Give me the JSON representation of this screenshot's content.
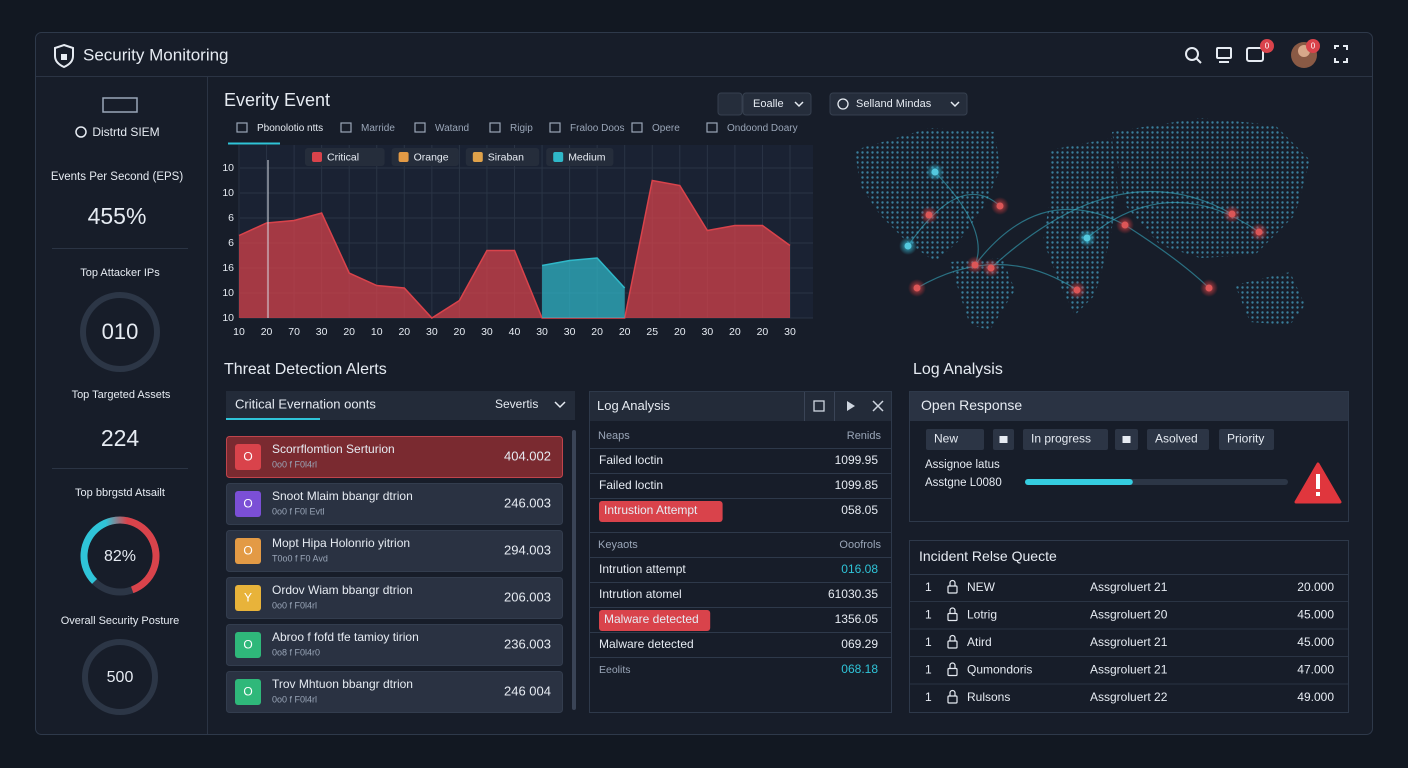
{
  "header": {
    "title": "Security Monitoring",
    "badges": [
      "0",
      "0"
    ]
  },
  "sidebar": {
    "brand": "Distrtd SIEM",
    "eps_label": "Events Per Second (EPS)",
    "eps_value": "455%",
    "attacker_label": "Top Attacker IPs",
    "attacker_value": "010",
    "assets_label": "Top Targeted Assets",
    "assets_value": "224",
    "gauge_label": "Top bbrgstd Atsailt",
    "gauge_text": "82%",
    "gauge_value": 82,
    "posture_label": "Overall Security Posture",
    "posture_value": "500"
  },
  "event_panel": {
    "dropdowns": [
      "Eoalle",
      "Selland Mindas"
    ],
    "tabs": [
      "Pbonolotio ntts",
      "Marride",
      "Watand",
      "Rigip",
      "Fraloo Doos",
      "Opere",
      "Ondoond Doary"
    ]
  },
  "chart_data": {
    "type": "area",
    "title": "Everity Event",
    "categories": [
      "10",
      "20",
      "70",
      "30",
      "20",
      "10",
      "20",
      "30",
      "20",
      "30",
      "40",
      "30",
      "30",
      "20",
      "20",
      "25",
      "20",
      "30",
      "20",
      "20",
      "30"
    ],
    "series": [
      {
        "name": "Critical",
        "color": "#d9434b",
        "values": [
          3.3,
          3.8,
          3.9,
          4.2,
          1.8,
          1.3,
          1.2,
          0,
          0.7,
          2.7,
          2.7,
          0,
          0,
          0,
          0,
          5.5,
          5.3,
          3.5,
          3.7,
          3.7,
          2.9
        ]
      },
      {
        "name": "Orange",
        "color": "#e39a45",
        "values": [
          null,
          null,
          null,
          null,
          null,
          null,
          null,
          null,
          null,
          null,
          null,
          null,
          null,
          null,
          null,
          null,
          null,
          null,
          null,
          null,
          null
        ]
      },
      {
        "name": "Siraban",
        "color": "#e0a24a",
        "values": [
          null,
          null,
          null,
          null,
          null,
          null,
          null,
          null,
          null,
          null,
          null,
          null,
          null,
          null,
          null,
          null,
          null,
          null,
          null,
          null,
          null
        ]
      },
      {
        "name": "Medium",
        "color": "#2fb8c9",
        "values": [
          null,
          null,
          null,
          null,
          null,
          null,
          null,
          null,
          null,
          null,
          null,
          2.1,
          2.3,
          2.4,
          1.2,
          null,
          null,
          null,
          null,
          null,
          null
        ]
      }
    ],
    "ylim": [
      0,
      7
    ],
    "yticks": [
      {
        "value": 0,
        "label": "10"
      },
      {
        "value": 1,
        "label": "10"
      },
      {
        "value": 2,
        "label": "16"
      },
      {
        "value": 3,
        "label": "6"
      },
      {
        "value": 4,
        "label": "6"
      },
      {
        "value": 5,
        "label": "10"
      },
      {
        "value": 6,
        "label": "10"
      }
    ],
    "grid": true
  },
  "alerts": {
    "title": "Threat Detection Alerts",
    "header": "Critical Evernation oonts",
    "filter": "Severtis",
    "rows": [
      {
        "icon": "O",
        "color": "#d9434b",
        "name": "Scorrflomtion Serturion",
        "sub": "0o0 f F0l4rl",
        "value": "404.002",
        "selected": true
      },
      {
        "icon": "O",
        "color": "#7b4fd6",
        "name": "Snoot Mlaim bbangr dtrion",
        "sub": "0o0 f F0l Evtl",
        "value": "246.003",
        "selected": false
      },
      {
        "icon": "O",
        "color": "#e39a45",
        "name": "Mopt Hipa Holonrio yitrion",
        "sub": "T0o0 f F0 Avd",
        "value": "294.003",
        "selected": false
      },
      {
        "icon": "Y",
        "color": "#e8b33a",
        "name": "Ordov Wiam bbangr dtrion",
        "sub": "0o0 f F0l4rl",
        "value": "206.003",
        "selected": false
      },
      {
        "icon": "O",
        "color": "#2fb87a",
        "name": "Abroo f fofd tfe tamioy tirion",
        "sub": "0o8 f F0l4r0",
        "value": "236.003",
        "selected": false
      },
      {
        "icon": "O",
        "color": "#2fb87a",
        "name": "Trov Mhtuon bbangr dtrion",
        "sub": "0o0 f F0l4rl",
        "value": "246 004",
        "selected": false
      }
    ]
  },
  "log_panel": {
    "title": "Log Analysis",
    "columns": [
      "Neaps",
      "Renids"
    ],
    "rows": [
      {
        "event": "Failed loctin",
        "value": "1099.95",
        "alert": false,
        "highlight": false,
        "muted": false
      },
      {
        "event": "Failed loctin",
        "value": "1099.85",
        "alert": false,
        "highlight": false,
        "muted": false
      },
      {
        "event": "Intrustion Attempt",
        "value": "058.05",
        "alert": true,
        "highlight": false,
        "muted": false
      }
    ],
    "columns2": [
      "Keyaots",
      "Ooofrols"
    ],
    "rows2": [
      {
        "event": "Intrution attempt",
        "value": "016.08",
        "alert": false,
        "highlight": true,
        "muted": false
      },
      {
        "event": "Intrution atomel",
        "value": "61030.35",
        "alert": false,
        "highlight": false,
        "muted": false
      },
      {
        "event": "Malware detected",
        "value": "1356.05",
        "alert": true,
        "highlight": false,
        "muted": false
      },
      {
        "event": "Malware detected",
        "value": "069.29",
        "alert": false,
        "highlight": false,
        "muted": false
      },
      {
        "event": "Eeolits",
        "value": "068.18",
        "alert": false,
        "highlight": true,
        "muted": true
      }
    ]
  },
  "log_section_title": "Log Analysis",
  "response": {
    "title": "Open Response",
    "buttons": [
      "New",
      "In progress",
      "Asolved",
      "Priority"
    ],
    "status_label": "Assignoe latus",
    "assignee_label": "Asstgne L0080",
    "progress": 41
  },
  "queue": {
    "title": "Incident Relse Quecte",
    "rows": [
      {
        "rank": "1",
        "status": "NEW",
        "assignee": "Assgroluert 21",
        "value": "20.000"
      },
      {
        "rank": "1",
        "status": "Lotrig",
        "assignee": "Assgroluert 20",
        "value": "45.000"
      },
      {
        "rank": "1",
        "status": "Atird",
        "assignee": "Assgroluert 21",
        "value": "45.000"
      },
      {
        "rank": "1",
        "status": "Qumondoris",
        "assignee": "Assgroluert 21",
        "value": "47.000"
      },
      {
        "rank": "1",
        "status": "Rulsons",
        "assignee": "Assgroluert 22",
        "value": "49.000"
      }
    ]
  }
}
